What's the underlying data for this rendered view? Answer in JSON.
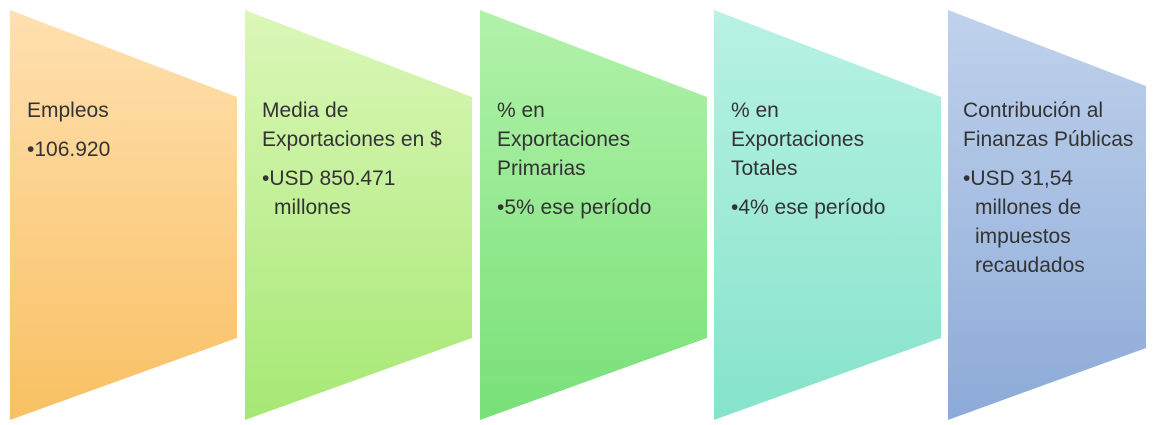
{
  "items": [
    {
      "title": "Empleos",
      "bullet": "106.920"
    },
    {
      "title": "Media de Exportaciones en $",
      "bullet": "USD 850.471 millones"
    },
    {
      "title": "% en Exportaciones Primarias",
      "bullet": "5% ese período"
    },
    {
      "title": "% en Exportaciones Totales",
      "bullet": "4% ese período"
    },
    {
      "title": "Contribución al Finanzas Públicas",
      "bullet": "USD 31,54 millones de impuestos recaudados"
    }
  ]
}
